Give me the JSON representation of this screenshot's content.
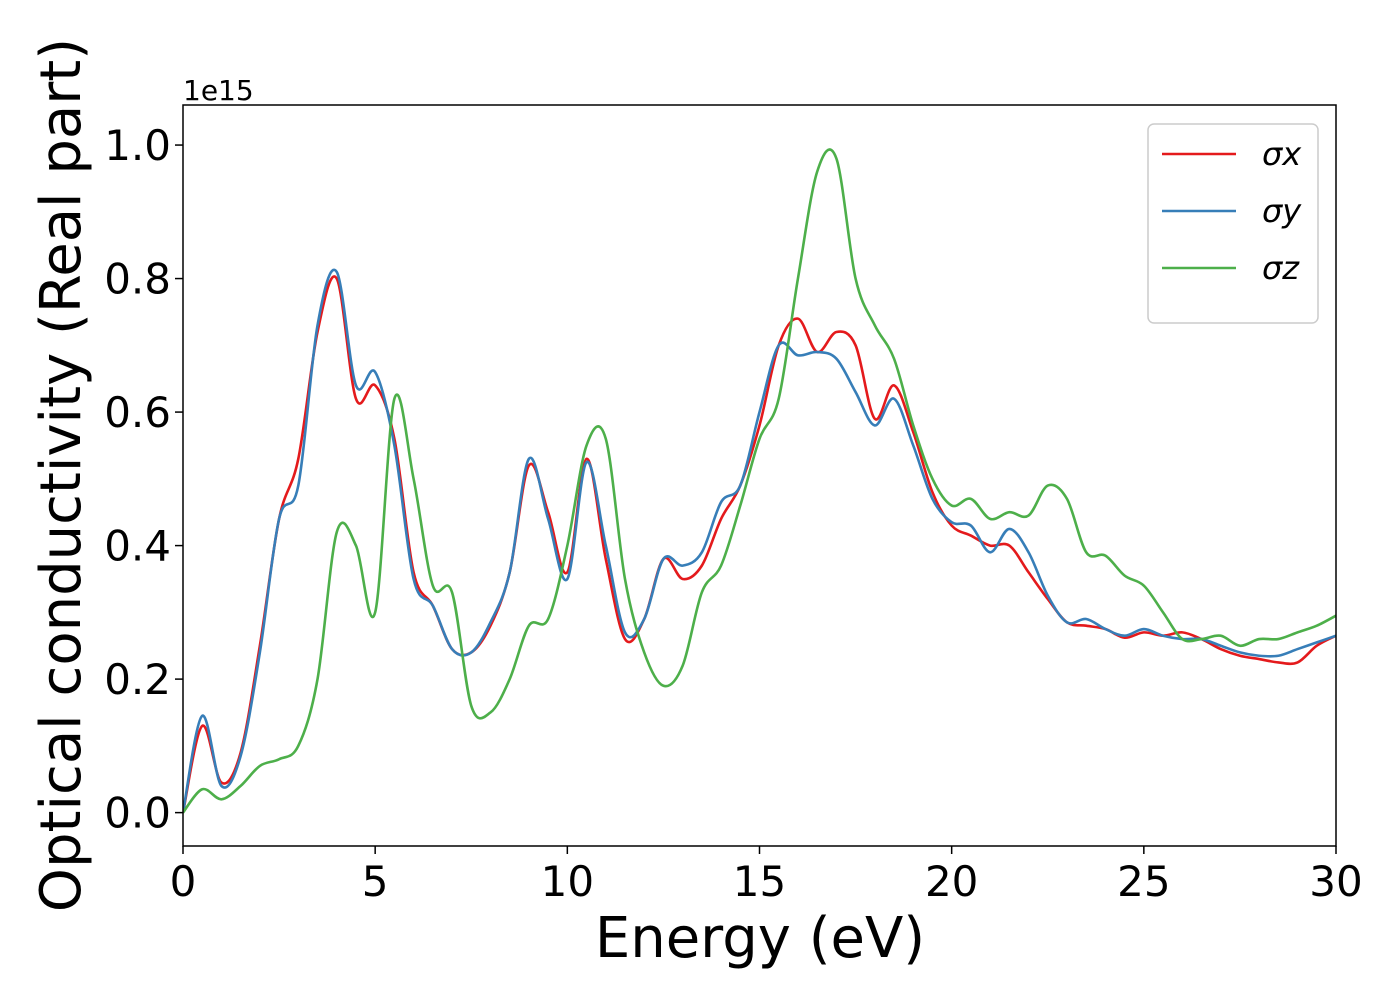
{
  "chart_data": {
    "type": "line",
    "xlabel": "Energy (eV)",
    "ylabel": "Optical conductivity (Real part)",
    "y_offset_label": "1e15",
    "x": [
      0,
      0.5,
      1,
      1.5,
      2,
      2.5,
      3,
      3.5,
      4,
      4.5,
      5,
      5.5,
      6,
      6.5,
      7,
      7.5,
      8,
      8.5,
      9,
      9.5,
      10,
      10.5,
      11,
      11.5,
      12,
      12.5,
      13,
      13.5,
      14,
      14.5,
      15,
      15.5,
      16,
      16.5,
      17,
      17.5,
      18,
      18.5,
      19,
      19.5,
      20,
      20.5,
      21,
      21.5,
      22,
      22.5,
      23,
      23.5,
      24,
      24.5,
      25,
      25.5,
      26,
      26.5,
      27,
      27.5,
      28,
      28.5,
      29,
      29.5,
      30
    ],
    "series": [
      {
        "name": "σx",
        "color": "#e41a1c",
        "values": [
          0,
          0.13,
          0.045,
          0.09,
          0.25,
          0.44,
          0.53,
          0.72,
          0.8,
          0.62,
          0.64,
          0.56,
          0.36,
          0.31,
          0.245,
          0.24,
          0.28,
          0.36,
          0.52,
          0.45,
          0.36,
          0.53,
          0.38,
          0.26,
          0.29,
          0.38,
          0.35,
          0.37,
          0.44,
          0.49,
          0.58,
          0.7,
          0.74,
          0.69,
          0.72,
          0.7,
          0.59,
          0.64,
          0.57,
          0.48,
          0.43,
          0.415,
          0.4,
          0.4,
          0.36,
          0.32,
          0.285,
          0.28,
          0.275,
          0.262,
          0.27,
          0.265,
          0.27,
          0.26,
          0.245,
          0.235,
          0.23,
          0.225,
          0.225,
          0.25,
          0.265
        ]
      },
      {
        "name": "σy",
        "color": "#377eb8",
        "values": [
          0,
          0.145,
          0.04,
          0.085,
          0.24,
          0.44,
          0.49,
          0.73,
          0.81,
          0.64,
          0.66,
          0.55,
          0.35,
          0.31,
          0.245,
          0.24,
          0.285,
          0.36,
          0.53,
          0.44,
          0.35,
          0.525,
          0.4,
          0.27,
          0.29,
          0.38,
          0.37,
          0.39,
          0.465,
          0.49,
          0.6,
          0.7,
          0.685,
          0.69,
          0.68,
          0.63,
          0.58,
          0.62,
          0.55,
          0.47,
          0.435,
          0.43,
          0.39,
          0.425,
          0.39,
          0.325,
          0.285,
          0.29,
          0.275,
          0.265,
          0.275,
          0.265,
          0.26,
          0.26,
          0.25,
          0.24,
          0.235,
          0.235,
          0.245,
          0.255,
          0.265
        ]
      },
      {
        "name": "σz",
        "color": "#4daf4a",
        "values": [
          0,
          0.035,
          0.02,
          0.04,
          0.07,
          0.08,
          0.1,
          0.2,
          0.42,
          0.4,
          0.3,
          0.62,
          0.5,
          0.34,
          0.33,
          0.16,
          0.15,
          0.2,
          0.28,
          0.29,
          0.4,
          0.55,
          0.56,
          0.35,
          0.24,
          0.19,
          0.22,
          0.33,
          0.37,
          0.46,
          0.56,
          0.62,
          0.8,
          0.96,
          0.98,
          0.8,
          0.73,
          0.68,
          0.58,
          0.5,
          0.46,
          0.47,
          0.44,
          0.45,
          0.445,
          0.49,
          0.47,
          0.39,
          0.385,
          0.355,
          0.34,
          0.3,
          0.26,
          0.26,
          0.265,
          0.25,
          0.26,
          0.26,
          0.27,
          0.28,
          0.295
        ]
      }
    ],
    "xlim": [
      0,
      30
    ],
    "xticks": [
      0,
      5,
      10,
      15,
      20,
      25,
      30
    ],
    "ylim": [
      -0.05,
      1.06
    ],
    "yticks": [
      {
        "value": 0,
        "label": "0.0"
      },
      {
        "value": 0.2,
        "label": "0.2"
      },
      {
        "value": 0.4,
        "label": "0.4"
      },
      {
        "value": 0.6,
        "label": "0.6"
      },
      {
        "value": 0.8,
        "label": "0.8"
      },
      {
        "value": 1,
        "label": "1.0"
      }
    ],
    "legend": "upper right",
    "grid": false
  }
}
